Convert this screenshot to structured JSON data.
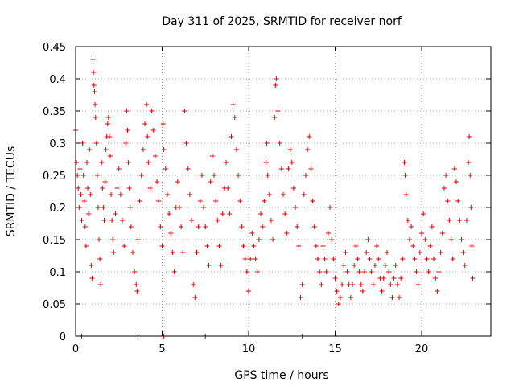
{
  "chart_data": {
    "type": "scatter",
    "title": "Day 311 of 2025, SRMTID for receiver norf",
    "xlabel": "GPS time / hours",
    "ylabel": "SRMTID / TECUs",
    "xlim": [
      0,
      24
    ],
    "ylim": [
      0,
      0.45
    ],
    "x_ticks": [
      0,
      5,
      10,
      15,
      20
    ],
    "y_ticks": [
      0,
      0.05,
      0.1,
      0.15,
      0.2,
      0.25,
      0.3,
      0.35,
      0.4,
      0.45
    ],
    "x_tick_labels": [
      "0",
      "5",
      "10",
      "15",
      "20"
    ],
    "y_tick_labels": [
      "0",
      "0.05",
      "0.1",
      "0.15",
      "0.2",
      "0.25",
      "0.3",
      "0.35",
      "0.4",
      "0.45"
    ],
    "grid": true,
    "marker": "plus",
    "color": "#e00000",
    "series": [
      {
        "name": "SRMTID",
        "points": [
          [
            0.0,
            0.32
          ],
          [
            0.05,
            0.27
          ],
          [
            0.1,
            0.25
          ],
          [
            0.15,
            0.23
          ],
          [
            0.2,
            0.2
          ],
          [
            0.25,
            0.26
          ],
          [
            0.3,
            0.22
          ],
          [
            0.35,
            0.18
          ],
          [
            0.4,
            0.3
          ],
          [
            0.45,
            0.25
          ],
          [
            0.5,
            0.21
          ],
          [
            0.55,
            0.17
          ],
          [
            0.6,
            0.14
          ],
          [
            0.65,
            0.27
          ],
          [
            0.7,
            0.23
          ],
          [
            0.75,
            0.19
          ],
          [
            0.8,
            0.29
          ],
          [
            0.85,
            0.22
          ],
          [
            0.9,
            0.11
          ],
          [
            0.95,
            0.09
          ],
          [
            1.0,
            0.43
          ],
          [
            1.03,
            0.41
          ],
          [
            1.06,
            0.39
          ],
          [
            1.09,
            0.38
          ],
          [
            1.12,
            0.36
          ],
          [
            1.15,
            0.34
          ],
          [
            1.2,
            0.3
          ],
          [
            1.25,
            0.25
          ],
          [
            1.3,
            0.2
          ],
          [
            1.35,
            0.15
          ],
          [
            1.4,
            0.12
          ],
          [
            1.45,
            0.08
          ],
          [
            1.5,
            0.27
          ],
          [
            1.55,
            0.23
          ],
          [
            1.6,
            0.2
          ],
          [
            1.65,
            0.18
          ],
          [
            1.7,
            0.24
          ],
          [
            1.75,
            0.29
          ],
          [
            1.8,
            0.31
          ],
          [
            1.85,
            0.33
          ],
          [
            1.9,
            0.34
          ],
          [
            1.95,
            0.31
          ],
          [
            2.0,
            0.28
          ],
          [
            2.05,
            0.22
          ],
          [
            2.1,
            0.18
          ],
          [
            2.15,
            0.15
          ],
          [
            2.2,
            0.13
          ],
          [
            2.3,
            0.19
          ],
          [
            2.4,
            0.23
          ],
          [
            2.5,
            0.26
          ],
          [
            2.6,
            0.22
          ],
          [
            2.7,
            0.18
          ],
          [
            2.8,
            0.14
          ],
          [
            2.9,
            0.3
          ],
          [
            2.95,
            0.35
          ],
          [
            3.0,
            0.32
          ],
          [
            3.05,
            0.27
          ],
          [
            3.1,
            0.23
          ],
          [
            3.15,
            0.2
          ],
          [
            3.2,
            0.17
          ],
          [
            3.3,
            0.13
          ],
          [
            3.4,
            0.1
          ],
          [
            3.5,
            0.08
          ],
          [
            3.55,
            0.07
          ],
          [
            3.6,
            0.15
          ],
          [
            3.7,
            0.21
          ],
          [
            3.8,
            0.25
          ],
          [
            3.9,
            0.29
          ],
          [
            4.0,
            0.33
          ],
          [
            4.1,
            0.36
          ],
          [
            4.15,
            0.31
          ],
          [
            4.2,
            0.27
          ],
          [
            4.3,
            0.23
          ],
          [
            4.4,
            0.35
          ],
          [
            4.5,
            0.32
          ],
          [
            4.6,
            0.28
          ],
          [
            4.7,
            0.24
          ],
          [
            4.8,
            0.21
          ],
          [
            4.9,
            0.17
          ],
          [
            5.0,
            0.14
          ],
          [
            5.05,
            0.33
          ],
          [
            5.1,
            0.29
          ],
          [
            5.2,
            0.26
          ],
          [
            5.3,
            0.22
          ],
          [
            5.4,
            0.19
          ],
          [
            5.5,
            0.16
          ],
          [
            5.6,
            0.13
          ],
          [
            5.7,
            0.1
          ],
          [
            5.8,
            0.2
          ],
          [
            5.9,
            0.24
          ],
          [
            6.0,
            0.2
          ],
          [
            6.1,
            0.17
          ],
          [
            6.2,
            0.13
          ],
          [
            6.3,
            0.35
          ],
          [
            6.4,
            0.3
          ],
          [
            6.5,
            0.26
          ],
          [
            6.6,
            0.22
          ],
          [
            6.7,
            0.18
          ],
          [
            6.8,
            0.08
          ],
          [
            6.9,
            0.06
          ],
          [
            7.0,
            0.13
          ],
          [
            7.1,
            0.17
          ],
          [
            7.2,
            0.21
          ],
          [
            7.3,
            0.25
          ],
          [
            7.4,
            0.2
          ],
          [
            7.5,
            0.17
          ],
          [
            7.6,
            0.14
          ],
          [
            7.7,
            0.11
          ],
          [
            7.8,
            0.24
          ],
          [
            7.9,
            0.28
          ],
          [
            8.0,
            0.25
          ],
          [
            8.1,
            0.21
          ],
          [
            8.2,
            0.18
          ],
          [
            8.3,
            0.14
          ],
          [
            8.4,
            0.11
          ],
          [
            8.5,
            0.19
          ],
          [
            8.6,
            0.23
          ],
          [
            8.7,
            0.27
          ],
          [
            8.8,
            0.23
          ],
          [
            8.9,
            0.19
          ],
          [
            9.0,
            0.31
          ],
          [
            9.1,
            0.36
          ],
          [
            9.2,
            0.34
          ],
          [
            9.3,
            0.29
          ],
          [
            9.4,
            0.25
          ],
          [
            9.5,
            0.21
          ],
          [
            9.6,
            0.17
          ],
          [
            9.7,
            0.14
          ],
          [
            9.8,
            0.12
          ],
          [
            9.9,
            0.1
          ],
          [
            10.0,
            0.07
          ],
          [
            10.1,
            0.12
          ],
          [
            10.2,
            0.16
          ],
          [
            10.3,
            0.14
          ],
          [
            10.4,
            0.12
          ],
          [
            10.5,
            0.1
          ],
          [
            10.6,
            0.15
          ],
          [
            10.7,
            0.19
          ],
          [
            10.8,
            0.17
          ],
          [
            10.9,
            0.21
          ],
          [
            11.0,
            0.27
          ],
          [
            11.05,
            0.3
          ],
          [
            11.1,
            0.25
          ],
          [
            11.2,
            0.22
          ],
          [
            11.3,
            0.18
          ],
          [
            11.4,
            0.15
          ],
          [
            11.5,
            0.34
          ],
          [
            11.55,
            0.39
          ],
          [
            11.6,
            0.4
          ],
          [
            11.7,
            0.35
          ],
          [
            11.8,
            0.3
          ],
          [
            11.9,
            0.26
          ],
          [
            12.0,
            0.22
          ],
          [
            12.1,
            0.19
          ],
          [
            12.2,
            0.16
          ],
          [
            12.3,
            0.26
          ],
          [
            12.4,
            0.29
          ],
          [
            12.5,
            0.27
          ],
          [
            12.6,
            0.23
          ],
          [
            12.7,
            0.2
          ],
          [
            12.8,
            0.17
          ],
          [
            12.9,
            0.14
          ],
          [
            13.0,
            0.06
          ],
          [
            13.1,
            0.08
          ],
          [
            13.2,
            0.22
          ],
          [
            13.3,
            0.25
          ],
          [
            13.4,
            0.29
          ],
          [
            13.5,
            0.31
          ],
          [
            13.6,
            0.26
          ],
          [
            13.7,
            0.21
          ],
          [
            13.8,
            0.17
          ],
          [
            13.9,
            0.14
          ],
          [
            14.0,
            0.12
          ],
          [
            14.1,
            0.1
          ],
          [
            14.2,
            0.08
          ],
          [
            14.3,
            0.14
          ],
          [
            14.4,
            0.12
          ],
          [
            14.5,
            0.1
          ],
          [
            14.6,
            0.16
          ],
          [
            14.7,
            0.2
          ],
          [
            14.8,
            0.15
          ],
          [
            14.9,
            0.12
          ],
          [
            15.0,
            0.09
          ],
          [
            15.1,
            0.07
          ],
          [
            15.2,
            0.05
          ],
          [
            15.3,
            0.06
          ],
          [
            15.4,
            0.08
          ],
          [
            15.5,
            0.11
          ],
          [
            15.6,
            0.13
          ],
          [
            15.7,
            0.1
          ],
          [
            15.8,
            0.08
          ],
          [
            15.9,
            0.06
          ],
          [
            16.0,
            0.08
          ],
          [
            16.1,
            0.11
          ],
          [
            16.2,
            0.14
          ],
          [
            16.3,
            0.12
          ],
          [
            16.4,
            0.1
          ],
          [
            16.5,
            0.08
          ],
          [
            16.6,
            0.07
          ],
          [
            16.7,
            0.1
          ],
          [
            16.8,
            0.13
          ],
          [
            16.9,
            0.15
          ],
          [
            17.0,
            0.12
          ],
          [
            17.1,
            0.1
          ],
          [
            17.2,
            0.08
          ],
          [
            17.3,
            0.11
          ],
          [
            17.4,
            0.14
          ],
          [
            17.5,
            0.12
          ],
          [
            17.6,
            0.09
          ],
          [
            17.7,
            0.07
          ],
          [
            17.8,
            0.09
          ],
          [
            17.9,
            0.11
          ],
          [
            18.0,
            0.13
          ],
          [
            18.1,
            0.1
          ],
          [
            18.2,
            0.08
          ],
          [
            18.3,
            0.06
          ],
          [
            18.4,
            0.09
          ],
          [
            18.5,
            0.11
          ],
          [
            18.6,
            0.08
          ],
          [
            18.7,
            0.06
          ],
          [
            18.8,
            0.09
          ],
          [
            18.9,
            0.12
          ],
          [
            19.0,
            0.27
          ],
          [
            19.05,
            0.25
          ],
          [
            19.1,
            0.22
          ],
          [
            19.2,
            0.18
          ],
          [
            19.3,
            0.15
          ],
          [
            19.4,
            0.17
          ],
          [
            19.5,
            0.14
          ],
          [
            19.6,
            0.12
          ],
          [
            19.7,
            0.1
          ],
          [
            19.8,
            0.08
          ],
          [
            19.9,
            0.13
          ],
          [
            20.0,
            0.16
          ],
          [
            20.1,
            0.19
          ],
          [
            20.2,
            0.15
          ],
          [
            20.3,
            0.12
          ],
          [
            20.4,
            0.1
          ],
          [
            20.5,
            0.14
          ],
          [
            20.6,
            0.17
          ],
          [
            20.7,
            0.12
          ],
          [
            20.8,
            0.09
          ],
          [
            20.9,
            0.07
          ],
          [
            21.0,
            0.1
          ],
          [
            21.1,
            0.13
          ],
          [
            21.2,
            0.16
          ],
          [
            21.3,
            0.23
          ],
          [
            21.4,
            0.25
          ],
          [
            21.5,
            0.21
          ],
          [
            21.6,
            0.18
          ],
          [
            21.7,
            0.15
          ],
          [
            21.8,
            0.12
          ],
          [
            21.9,
            0.26
          ],
          [
            22.0,
            0.24
          ],
          [
            22.1,
            0.21
          ],
          [
            22.2,
            0.18
          ],
          [
            22.3,
            0.15
          ],
          [
            22.4,
            0.13
          ],
          [
            22.5,
            0.11
          ],
          [
            22.6,
            0.18
          ],
          [
            22.7,
            0.27
          ],
          [
            22.75,
            0.31
          ],
          [
            22.8,
            0.25
          ],
          [
            22.85,
            0.2
          ],
          [
            22.9,
            0.14
          ],
          [
            22.95,
            0.09
          ],
          [
            0.35,
            0
          ],
          [
            3.6,
            0
          ],
          [
            5.05,
            0
          ],
          [
            5.1,
            0
          ],
          [
            7.5,
            0
          ],
          [
            13.1,
            0
          ]
        ]
      }
    ]
  }
}
